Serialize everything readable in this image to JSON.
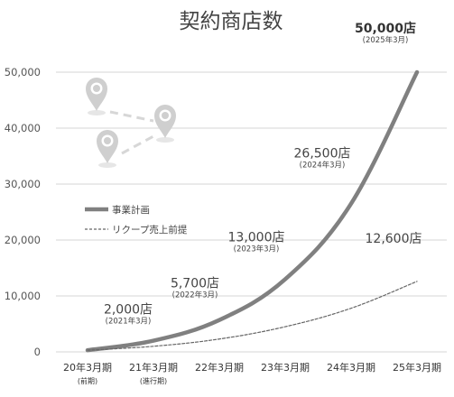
{
  "chart_data": {
    "type": "line",
    "title": "契約商店数",
    "categories": [
      "20年3月期",
      "21年3月期",
      "22年3月期",
      "23年3月期",
      "24年3月期",
      "25年3月期"
    ],
    "category_notes": [
      "(前期)",
      "(進行期)",
      "",
      "",
      "",
      ""
    ],
    "ylim": [
      0,
      55000
    ],
    "yticks": [
      0,
      10000,
      20000,
      30000,
      40000,
      50000
    ],
    "ytick_labels": [
      "0",
      "10,000",
      "20,000",
      "30,000",
      "40,000",
      "50,000"
    ],
    "grid": true,
    "legend_position": "left",
    "series": [
      {
        "name": "事業計画",
        "style": "solid",
        "color": "#808080",
        "values": [
          300,
          2000,
          5700,
          13000,
          26500,
          50000
        ]
      },
      {
        "name": "リクープ売上前提",
        "style": "dashed",
        "color": "#666666",
        "values": [
          300,
          1000,
          2300,
          4500,
          7800,
          12600
        ]
      }
    ],
    "annotations": [
      {
        "index": 1,
        "series": 0,
        "text": "2,000店",
        "sub": "(2021年3月)",
        "bold": false
      },
      {
        "index": 2,
        "series": 0,
        "text": "5,700店",
        "sub": "(2022年3月)",
        "bold": false
      },
      {
        "index": 3,
        "series": 0,
        "text": "13,000店",
        "sub": "(2023年3月)",
        "bold": false
      },
      {
        "index": 4,
        "series": 0,
        "text": "26,500店",
        "sub": "(2024年3月)",
        "bold": false
      },
      {
        "index": 5,
        "series": 0,
        "text": "50,000店",
        "sub": "(2025年3月)",
        "bold": true
      },
      {
        "index": 5,
        "series": 1,
        "text": "12,600店",
        "sub": "",
        "bold": false
      }
    ],
    "icons": [
      "map-pin-icon",
      "map-pin-icon",
      "map-pin-icon"
    ]
  }
}
